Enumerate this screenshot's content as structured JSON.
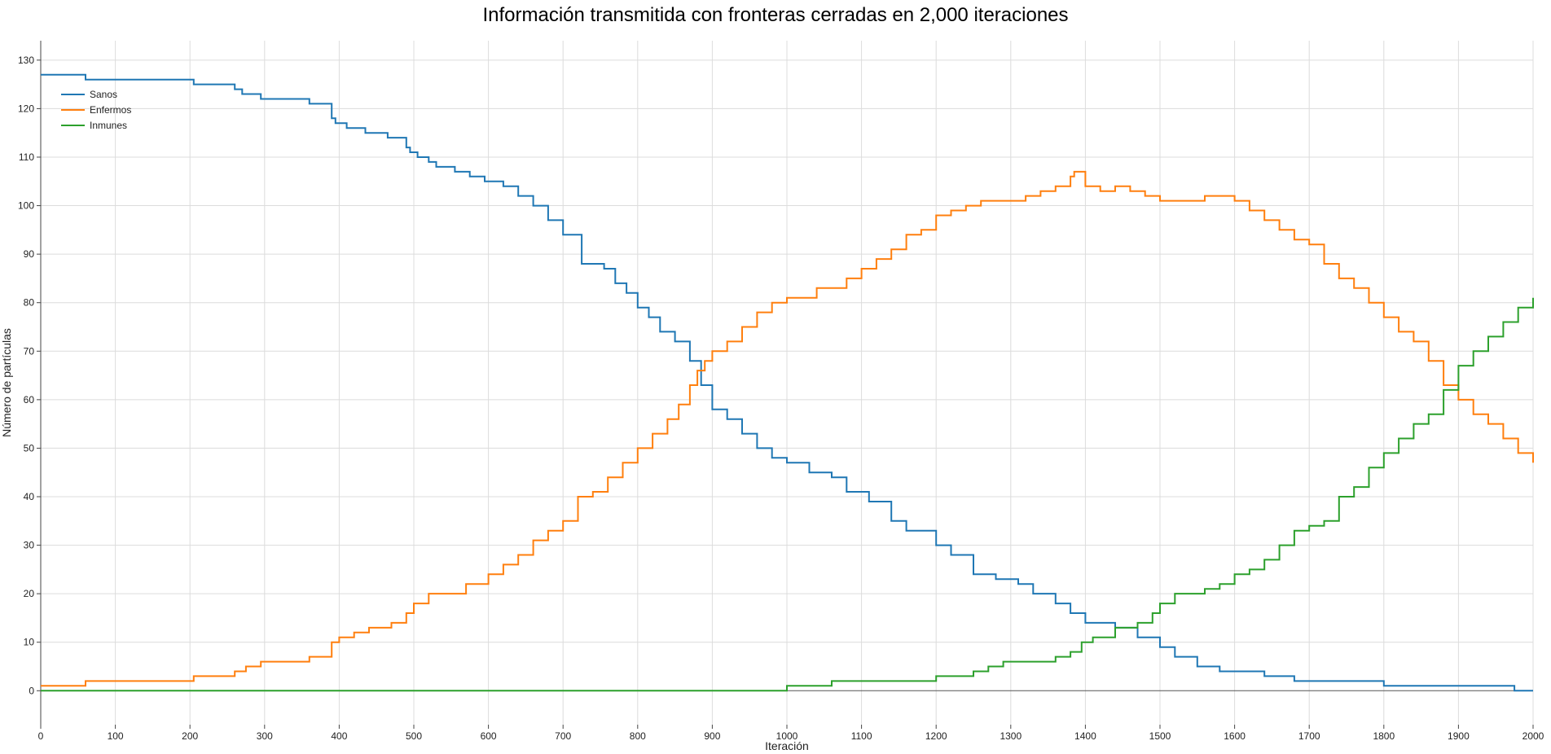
{
  "chart_data": {
    "type": "line",
    "title": "Información transmitida con fronteras cerradas en 2,000 iteraciones",
    "xlabel": "Iteración",
    "ylabel": "Número de partículas",
    "xlim": [
      0,
      2000
    ],
    "ylim": [
      -7,
      134
    ],
    "x_ticks": [
      0,
      100,
      200,
      300,
      400,
      500,
      600,
      700,
      800,
      900,
      1000,
      1100,
      1200,
      1300,
      1400,
      1500,
      1600,
      1700,
      1800,
      1900,
      2000
    ],
    "y_ticks": [
      0,
      10,
      20,
      30,
      40,
      50,
      60,
      70,
      80,
      90,
      100,
      110,
      120,
      130
    ],
    "grid": true,
    "legend_position": "top-left",
    "series": [
      {
        "name": "Sanos",
        "color": "#1f77b4",
        "x": [
          0,
          60,
          205,
          260,
          270,
          295,
          360,
          390,
          395,
          410,
          435,
          465,
          490,
          495,
          505,
          520,
          530,
          555,
          575,
          595,
          620,
          640,
          660,
          680,
          700,
          725,
          755,
          770,
          785,
          800,
          815,
          830,
          850,
          870,
          885,
          900,
          920,
          940,
          960,
          980,
          1000,
          1030,
          1060,
          1080,
          1110,
          1140,
          1160,
          1200,
          1220,
          1250,
          1280,
          1310,
          1330,
          1360,
          1380,
          1400,
          1440,
          1470,
          1500,
          1520,
          1550,
          1580,
          1640,
          1680,
          1720,
          1800,
          1880,
          1975,
          2000
        ],
        "y": [
          127,
          126,
          125,
          124,
          123,
          122,
          121,
          118,
          117,
          116,
          115,
          114,
          112,
          111,
          110,
          109,
          108,
          107,
          106,
          105,
          104,
          102,
          100,
          97,
          94,
          88,
          87,
          84,
          82,
          79,
          77,
          74,
          72,
          68,
          63,
          58,
          56,
          53,
          50,
          48,
          47,
          45,
          44,
          41,
          39,
          35,
          33,
          30,
          28,
          24,
          23,
          22,
          20,
          18,
          16,
          14,
          13,
          11,
          9,
          7,
          5,
          4,
          3,
          2,
          2,
          1,
          1,
          0,
          0
        ]
      },
      {
        "name": "Enfermos",
        "color": "#ff7f0e",
        "x": [
          0,
          60,
          205,
          260,
          275,
          295,
          360,
          390,
          400,
          420,
          440,
          470,
          490,
          500,
          520,
          540,
          570,
          600,
          620,
          640,
          660,
          680,
          700,
          720,
          740,
          760,
          780,
          800,
          820,
          840,
          855,
          870,
          880,
          890,
          900,
          920,
          940,
          960,
          980,
          1000,
          1020,
          1040,
          1060,
          1080,
          1100,
          1120,
          1140,
          1160,
          1180,
          1200,
          1220,
          1240,
          1260,
          1280,
          1300,
          1320,
          1340,
          1360,
          1380,
          1385,
          1400,
          1420,
          1440,
          1460,
          1480,
          1500,
          1520,
          1540,
          1560,
          1580,
          1600,
          1620,
          1640,
          1660,
          1680,
          1700,
          1720,
          1740,
          1760,
          1780,
          1800,
          1820,
          1840,
          1860,
          1880,
          1900,
          1920,
          1940,
          1960,
          1980,
          2000
        ],
        "y": [
          1,
          2,
          3,
          4,
          5,
          6,
          7,
          10,
          11,
          12,
          13,
          14,
          16,
          18,
          20,
          20,
          22,
          24,
          26,
          28,
          31,
          33,
          35,
          40,
          41,
          44,
          47,
          50,
          53,
          56,
          59,
          63,
          66,
          68,
          70,
          72,
          75,
          78,
          80,
          81,
          81,
          83,
          83,
          85,
          87,
          89,
          91,
          94,
          95,
          98,
          99,
          100,
          101,
          101,
          101,
          102,
          103,
          104,
          106,
          107,
          104,
          103,
          104,
          103,
          102,
          101,
          101,
          101,
          102,
          102,
          101,
          99,
          97,
          95,
          93,
          92,
          88,
          85,
          83,
          80,
          77,
          74,
          72,
          68,
          63,
          60,
          57,
          55,
          52,
          49,
          47
        ]
      },
      {
        "name": "Inmunes",
        "color": "#2ca02c",
        "x": [
          0,
          1000,
          1060,
          1200,
          1250,
          1270,
          1290,
          1300,
          1360,
          1380,
          1395,
          1410,
          1440,
          1470,
          1490,
          1500,
          1520,
          1560,
          1580,
          1600,
          1620,
          1640,
          1660,
          1680,
          1700,
          1720,
          1740,
          1760,
          1780,
          1800,
          1820,
          1840,
          1860,
          1880,
          1900,
          1920,
          1940,
          1960,
          1980,
          2000
        ],
        "y": [
          0,
          1,
          2,
          3,
          4,
          5,
          6,
          6,
          7,
          8,
          10,
          11,
          13,
          14,
          16,
          18,
          20,
          21,
          22,
          24,
          25,
          27,
          30,
          33,
          34,
          35,
          40,
          42,
          46,
          49,
          52,
          55,
          57,
          62,
          67,
          70,
          73,
          76,
          79,
          81
        ]
      }
    ]
  }
}
